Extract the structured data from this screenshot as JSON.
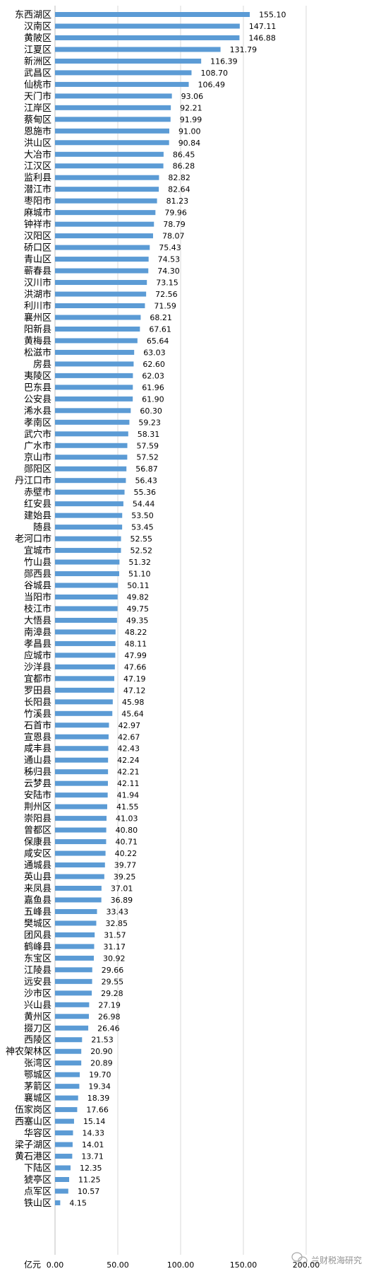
{
  "chart_data": {
    "type": "bar",
    "orientation": "horizontal",
    "title": "",
    "xlabel": "",
    "ylabel": "",
    "unit_label": "亿元",
    "xlim": [
      0,
      200
    ],
    "xticks": [
      0,
      50,
      100,
      150,
      200
    ],
    "xtick_labels": [
      "0.00",
      "50.00",
      "100.00",
      "150.00",
      "200.00"
    ],
    "grid": "vertical",
    "legend": "none",
    "bar_color": "#5B9BD5",
    "categories": [
      "东西湖区",
      "汉南区",
      "黄陂区",
      "江夏区",
      "新洲区",
      "武昌区",
      "仙桃市",
      "天门市",
      "江岸区",
      "蔡甸区",
      "恩施市",
      "洪山区",
      "大冶市",
      "江汉区",
      "监利县",
      "潜江市",
      "枣阳市",
      "麻城市",
      "钟祥市",
      "汉阳区",
      "硚口区",
      "青山区",
      "蕲春县",
      "汉川市",
      "洪湖市",
      "利川市",
      "襄州区",
      "阳新县",
      "黄梅县",
      "松滋市",
      "房县",
      "夷陵区",
      "巴东县",
      "公安县",
      "浠水县",
      "孝南区",
      "武穴市",
      "广水市",
      "京山市",
      "郧阳区",
      "丹江口市",
      "赤壁市",
      "红安县",
      "建始县",
      "随县",
      "老河口市",
      "宜城市",
      "竹山县",
      "郧西县",
      "谷城县",
      "当阳市",
      "枝江市",
      "大悟县",
      "南漳县",
      "孝昌县",
      "应城市",
      "沙洋县",
      "宜都市",
      "罗田县",
      "长阳县",
      "竹溪县",
      "石首市",
      "宣恩县",
      "咸丰县",
      "通山县",
      "秭归县",
      "云梦县",
      "安陆市",
      "荆州区",
      "崇阳县",
      "曾都区",
      "保康县",
      "咸安区",
      "通城县",
      "英山县",
      "来凤县",
      "嘉鱼县",
      "五峰县",
      "樊城区",
      "团风县",
      "鹤峰县",
      "东宝区",
      "江陵县",
      "远安县",
      "沙市区",
      "兴山县",
      "黄州区",
      "掇刀区",
      "西陵区",
      "神农架林区",
      "张湾区",
      "鄂城区",
      "茅箭区",
      "襄城区",
      "伍家岗区",
      "西塞山区",
      "华容区",
      "梁子湖区",
      "黄石港区",
      "下陆区",
      "猇亭区",
      "点军区",
      "铁山区"
    ],
    "values": [
      155.1,
      147.11,
      146.88,
      131.79,
      116.39,
      108.7,
      106.49,
      93.06,
      92.21,
      91.99,
      91.0,
      90.84,
      86.45,
      86.28,
      82.82,
      82.64,
      81.23,
      79.96,
      78.79,
      78.07,
      75.43,
      74.53,
      74.3,
      73.15,
      72.56,
      71.59,
      68.21,
      67.61,
      65.64,
      63.03,
      62.6,
      62.03,
      61.96,
      61.9,
      60.3,
      59.23,
      58.31,
      57.59,
      57.52,
      56.87,
      56.43,
      55.36,
      54.44,
      53.5,
      53.45,
      52.55,
      52.52,
      51.32,
      51.1,
      50.11,
      49.82,
      49.75,
      49.35,
      48.22,
      48.11,
      47.99,
      47.66,
      47.19,
      47.12,
      45.98,
      45.64,
      42.97,
      42.67,
      42.43,
      42.24,
      42.21,
      42.11,
      41.94,
      41.55,
      41.03,
      40.8,
      40.71,
      40.22,
      39.77,
      39.25,
      37.01,
      36.89,
      33.43,
      32.85,
      31.57,
      31.17,
      30.92,
      29.66,
      29.55,
      29.28,
      27.19,
      26.98,
      26.46,
      21.53,
      20.9,
      20.89,
      19.7,
      19.34,
      18.39,
      17.66,
      15.14,
      14.33,
      14.01,
      13.71,
      12.35,
      11.25,
      10.57,
      4.15
    ],
    "value_labels": [
      "155.10",
      "147.11",
      "146.88",
      "131.79",
      "116.39",
      "108.70",
      "106.49",
      "93.06",
      "92.21",
      "91.99",
      "91.00",
      "90.84",
      "86.45",
      "86.28",
      "82.82",
      "82.64",
      "81.23",
      "79.96",
      "78.79",
      "78.07",
      "75.43",
      "74.53",
      "74.30",
      "73.15",
      "72.56",
      "71.59",
      "68.21",
      "67.61",
      "65.64",
      "63.03",
      "62.60",
      "62.03",
      "61.96",
      "61.90",
      "60.30",
      "59.23",
      "58.31",
      "57.59",
      "57.52",
      "56.87",
      "56.43",
      "55.36",
      "54.44",
      "53.50",
      "53.45",
      "52.55",
      "52.52",
      "51.32",
      "51.10",
      "50.11",
      "49.82",
      "49.75",
      "49.35",
      "48.22",
      "48.11",
      "47.99",
      "47.66",
      "47.19",
      "47.12",
      "45.98",
      "45.64",
      "42.97",
      "42.67",
      "42.43",
      "42.24",
      "42.21",
      "42.11",
      "41.94",
      "41.55",
      "41.03",
      "40.80",
      "40.71",
      "40.22",
      "39.77",
      "39.25",
      "37.01",
      "36.89",
      "33.43",
      "32.85",
      "31.57",
      "31.17",
      "30.92",
      "29.66",
      "29.55",
      "29.28",
      "27.19",
      "26.98",
      "26.46",
      "21.53",
      "20.90",
      "20.89",
      "19.70",
      "19.34",
      "18.39",
      "17.66",
      "15.14",
      "14.33",
      "14.01",
      "13.71",
      "12.35",
      "11.25",
      "10.57",
      "4.15"
    ]
  },
  "watermark": {
    "text": "兰财税海研究",
    "icon": "wechat-logo-icon"
  }
}
